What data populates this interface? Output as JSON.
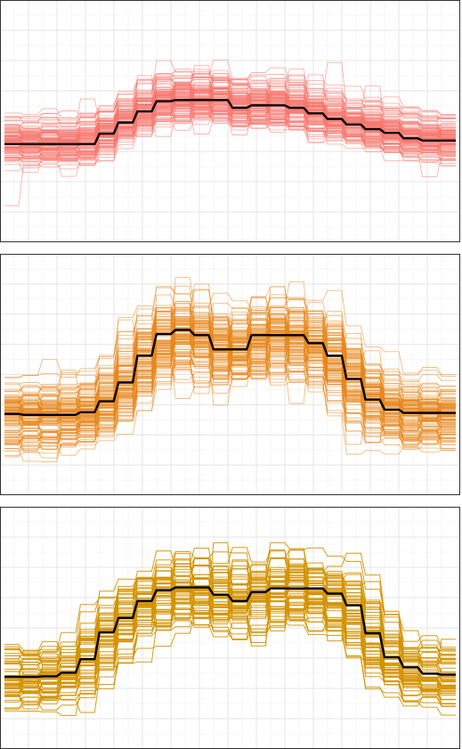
{
  "chart_data": [
    {
      "type": "line",
      "x": [
        1,
        2,
        3,
        4,
        5,
        6,
        7,
        8,
        9,
        10,
        11,
        12,
        13,
        14,
        15,
        16,
        17,
        18,
        19,
        20,
        21,
        22,
        23,
        24
      ],
      "ylim": [
        0,
        1
      ],
      "grid": true,
      "colors": {
        "trajectories": "#f8766d",
        "mean": "#000000"
      },
      "trajectory_count": 120,
      "mean_values": [
        0.405,
        0.405,
        0.405,
        0.405,
        0.405,
        0.448,
        0.494,
        0.54,
        0.582,
        0.587,
        0.587,
        0.587,
        0.555,
        0.565,
        0.565,
        0.555,
        0.532,
        0.509,
        0.486,
        0.467,
        0.452,
        0.429,
        0.42,
        0.42
      ]
    },
    {
      "type": "line",
      "x": [
        1,
        2,
        3,
        4,
        5,
        6,
        7,
        8,
        9,
        10,
        11,
        12,
        13,
        14,
        15,
        16,
        17,
        18,
        19,
        20,
        21,
        22,
        23,
        24
      ],
      "ylim": [
        0,
        1
      ],
      "grid": true,
      "colors": {
        "trajectories": "#e7861b",
        "mean": "#000000"
      },
      "trajectory_count": 120,
      "mean_values": [
        0.337,
        0.333,
        0.333,
        0.333,
        0.344,
        0.389,
        0.467,
        0.578,
        0.667,
        0.685,
        0.663,
        0.604,
        0.604,
        0.663,
        0.663,
        0.663,
        0.63,
        0.578,
        0.481,
        0.396,
        0.355,
        0.341,
        0.341,
        0.341
      ]
    },
    {
      "type": "line",
      "x": [
        1,
        2,
        3,
        4,
        5,
        6,
        7,
        8,
        9,
        10,
        11,
        12,
        13,
        14,
        15,
        16,
        17,
        18,
        19,
        20,
        21,
        22,
        23,
        24
      ],
      "ylim": [
        0,
        1
      ],
      "grid": true,
      "colors": {
        "trajectories": "#d39200",
        "mean": "#000000"
      },
      "trajectory_count": 60,
      "mean_values": [
        0.298,
        0.298,
        0.3,
        0.315,
        0.371,
        0.482,
        0.541,
        0.611,
        0.656,
        0.667,
        0.667,
        0.637,
        0.611,
        0.648,
        0.663,
        0.663,
        0.663,
        0.641,
        0.593,
        0.478,
        0.378,
        0.337,
        0.311,
        0.307
      ]
    }
  ]
}
